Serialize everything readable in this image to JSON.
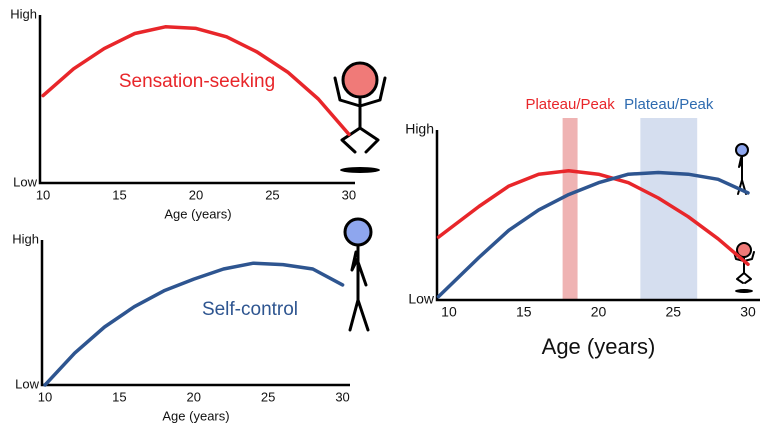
{
  "chart_data": [
    {
      "type": "line",
      "annotation": "Sensation-seeking",
      "x_label": "Age (years)",
      "x": [
        10,
        12,
        14,
        16,
        18,
        20,
        22,
        24,
        26,
        28,
        30
      ],
      "series": [
        {
          "color": "#e8262a",
          "values": [
            0.52,
            0.68,
            0.8,
            0.89,
            0.93,
            0.92,
            0.87,
            0.78,
            0.66,
            0.5,
            0.29
          ]
        }
      ],
      "xlim": [
        9.8,
        30.4
      ],
      "ylim": [
        0,
        1
      ],
      "xticks": [
        10,
        15,
        20,
        25,
        30
      ],
      "yticks": [
        {
          "value": 0,
          "label": "Low"
        },
        {
          "value": 1,
          "label": "High"
        }
      ]
    },
    {
      "type": "line",
      "annotation": "Self-control",
      "x_label": "Age (years)",
      "x": [
        10,
        12,
        14,
        16,
        18,
        20,
        22,
        24,
        26,
        28,
        30
      ],
      "series": [
        {
          "color": "#2e5590",
          "values": [
            0,
            0.22,
            0.4,
            0.54,
            0.65,
            0.73,
            0.8,
            0.84,
            0.83,
            0.8,
            0.69
          ]
        }
      ],
      "xlim": [
        9.8,
        30.5
      ],
      "ylim": [
        0,
        1
      ],
      "xticks": [
        10,
        15,
        20,
        25,
        30
      ],
      "yticks": [
        {
          "value": 0,
          "label": "Low"
        },
        {
          "value": 1,
          "label": "High"
        }
      ]
    },
    {
      "type": "line",
      "x_label": "Age (years)",
      "x": [
        9.3,
        12,
        14,
        16,
        18,
        20,
        22,
        24,
        26,
        28,
        30
      ],
      "series": [
        {
          "color": "#e8262a",
          "values": [
            0.37,
            0.55,
            0.67,
            0.74,
            0.76,
            0.74,
            0.69,
            0.6,
            0.49,
            0.36,
            0.21
          ]
        },
        {
          "color": "#2e5590",
          "values": [
            0.02,
            0.25,
            0.41,
            0.53,
            0.62,
            0.69,
            0.74,
            0.75,
            0.74,
            0.71,
            0.63
          ]
        }
      ],
      "bands": [
        {
          "label": "Plateau/Peak",
          "range": [
            17.6,
            18.6
          ],
          "color": "#e8262a",
          "fill": "#efb3b3"
        },
        {
          "label": "Plateau/Peak",
          "range": [
            22.8,
            26.6
          ],
          "color": "#2e6bb0",
          "fill": "#d5deef"
        }
      ],
      "xlim": [
        9.2,
        30.8
      ],
      "ylim": [
        0,
        1
      ],
      "xticks": [
        10,
        15,
        20,
        25,
        30
      ],
      "yticks": [
        {
          "value": 0,
          "label": "Low"
        },
        {
          "value": 1,
          "label": "High"
        }
      ]
    }
  ]
}
